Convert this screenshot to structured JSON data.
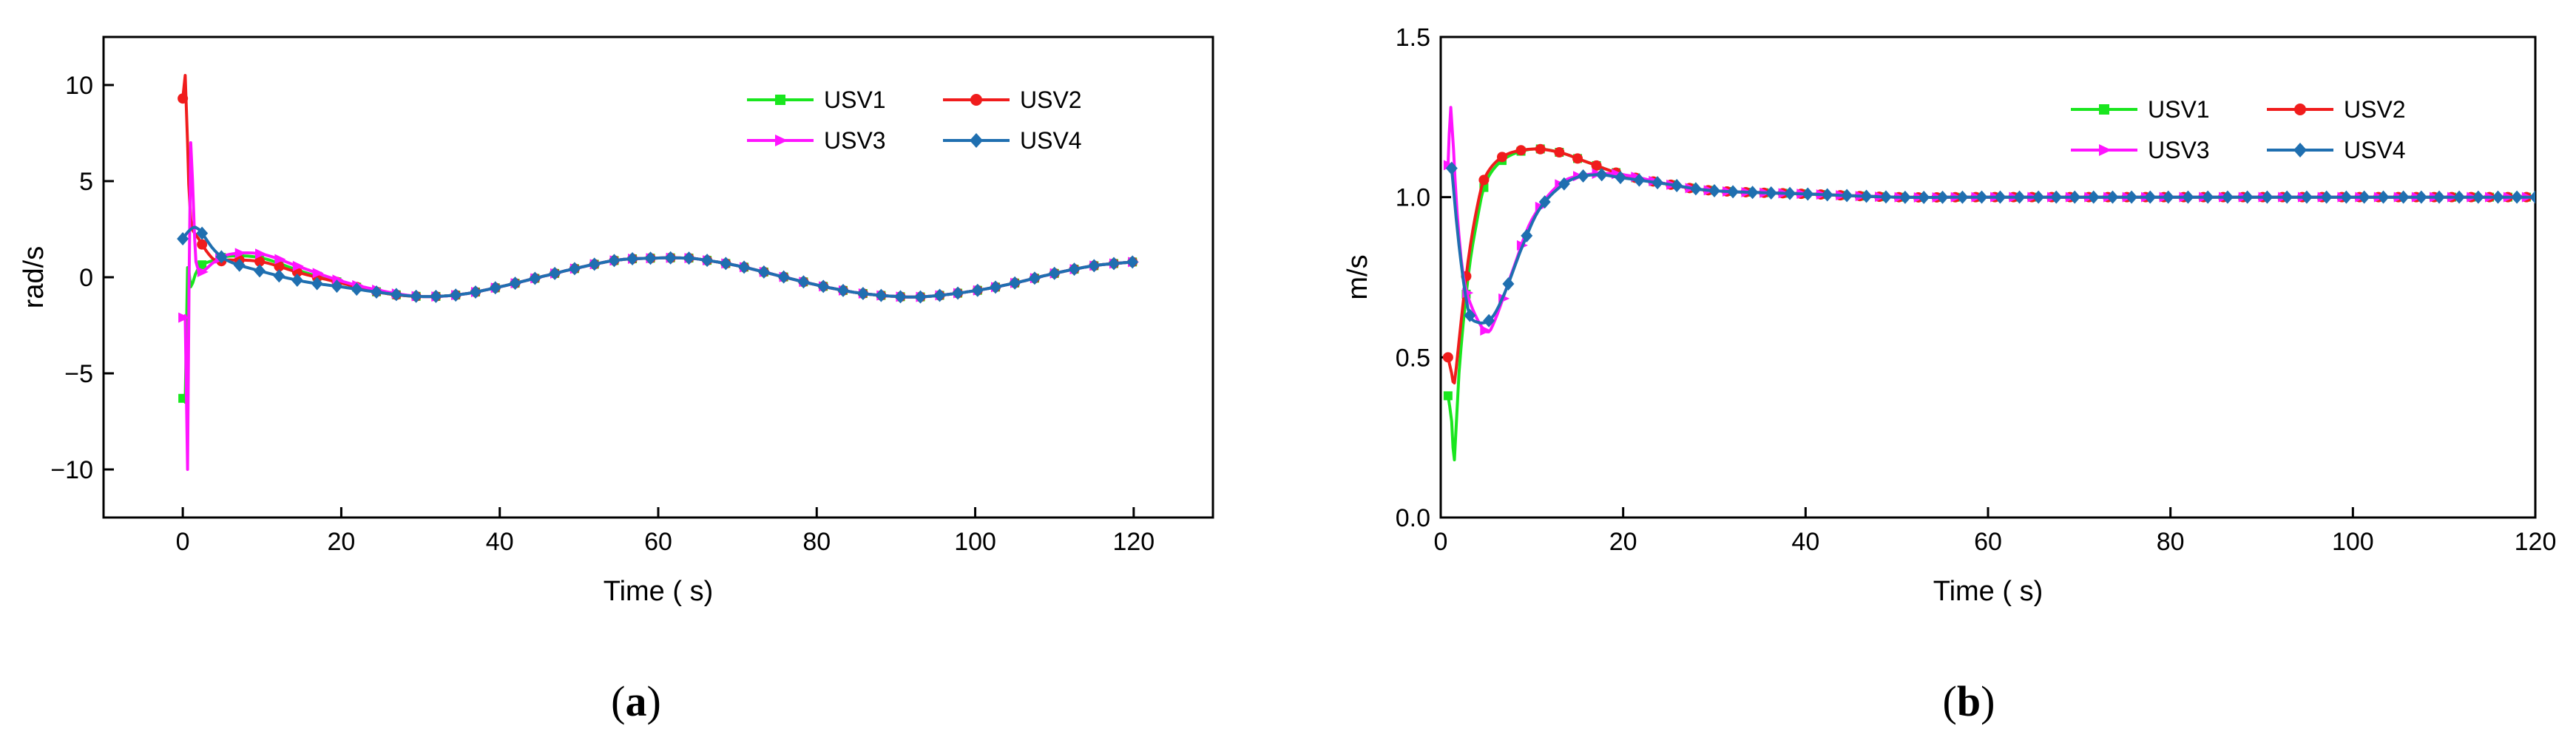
{
  "figure": {
    "captions": [
      {
        "open": "(",
        "letter": "a",
        "close": ")"
      },
      {
        "open": "(",
        "letter": "b",
        "close": ")"
      }
    ]
  },
  "chart_data": [
    {
      "type": "line",
      "panel": "a",
      "xlabel": "Time ( s)",
      "ylabel": "rad/s",
      "xlim": [
        -10,
        130
      ],
      "ylim": [
        -12.5,
        12.5
      ],
      "xticks": [
        0,
        20,
        40,
        60,
        80,
        100,
        120
      ],
      "xtick_labels": [
        "0",
        "20",
        "40",
        "60",
        "80",
        "100",
        "120"
      ],
      "yticks": [
        -10,
        -5,
        0,
        5,
        10
      ],
      "ytick_labels": [
        "−10",
        "−5",
        "0",
        "5",
        "10"
      ],
      "legend_position": "top-right",
      "series": [
        {
          "name": "USV1",
          "color": "#19e61e",
          "marker": "square",
          "x": [
            0,
            0.3,
            0.6,
            1,
            2,
            4,
            6,
            10,
            15,
            20,
            25,
            30,
            35,
            40,
            45,
            50,
            55,
            60,
            63,
            65,
            70,
            75,
            80,
            85,
            90,
            94,
            100,
            105,
            110,
            115,
            120
          ],
          "y": [
            -6.3,
            -6.5,
            0.5,
            -0.5,
            0.5,
            0.9,
            1.1,
            1.0,
            0.3,
            -0.3,
            -0.8,
            -1.0,
            -0.9,
            -0.5,
            0.0,
            0.5,
            0.9,
            1.0,
            1.0,
            0.95,
            0.6,
            0.1,
            -0.4,
            -0.8,
            -1.0,
            -1.0,
            -0.7,
            -0.3,
            0.2,
            0.6,
            0.8
          ]
        },
        {
          "name": "USV2",
          "color": "#f01c1c",
          "marker": "circle",
          "x": [
            0,
            0.3,
            0.6,
            1,
            2,
            4,
            6,
            10,
            15,
            20,
            25,
            30,
            35,
            40,
            45,
            50,
            55,
            60,
            63,
            65,
            70,
            75,
            80,
            85,
            90,
            94,
            100,
            105,
            110,
            115,
            120
          ],
          "y": [
            9.3,
            10.5,
            7.0,
            3.0,
            2.0,
            0.9,
            0.9,
            0.8,
            0.2,
            -0.3,
            -0.8,
            -1.0,
            -0.9,
            -0.5,
            0.0,
            0.5,
            0.9,
            1.0,
            1.0,
            0.95,
            0.6,
            0.1,
            -0.4,
            -0.8,
            -1.0,
            -1.0,
            -0.7,
            -0.3,
            0.2,
            0.6,
            0.8
          ]
        },
        {
          "name": "USV3",
          "color": "#ff14ff",
          "marker": "triangle-right",
          "x": [
            0,
            0.3,
            0.6,
            0.8,
            1.0,
            1.5,
            2,
            4,
            6,
            10,
            15,
            20,
            25,
            30,
            35,
            40,
            45,
            50,
            55,
            60,
            63,
            65,
            70,
            75,
            80,
            85,
            90,
            94,
            100,
            105,
            110,
            115,
            120
          ],
          "y": [
            -2.1,
            -2.0,
            -10.0,
            0.0,
            7.0,
            2.0,
            0.3,
            0.8,
            1.2,
            1.2,
            0.5,
            -0.2,
            -0.7,
            -1.0,
            -0.9,
            -0.5,
            0.0,
            0.5,
            0.9,
            1.0,
            1.0,
            0.95,
            0.6,
            0.1,
            -0.4,
            -0.8,
            -1.0,
            -1.0,
            -0.7,
            -0.3,
            0.2,
            0.6,
            0.8
          ]
        },
        {
          "name": "USV4",
          "color": "#1f6fb0",
          "marker": "diamond",
          "x": [
            0,
            1,
            2,
            4,
            6,
            10,
            15,
            20,
            25,
            30,
            35,
            40,
            45,
            50,
            55,
            60,
            63,
            65,
            70,
            75,
            80,
            85,
            90,
            94,
            100,
            105,
            110,
            115,
            120
          ],
          "y": [
            2.0,
            2.5,
            2.5,
            1.4,
            0.8,
            0.3,
            -0.2,
            -0.5,
            -0.8,
            -1.0,
            -0.9,
            -0.5,
            0.0,
            0.5,
            0.9,
            1.0,
            1.0,
            0.95,
            0.6,
            0.1,
            -0.4,
            -0.8,
            -1.0,
            -1.0,
            -0.7,
            -0.3,
            0.2,
            0.6,
            0.8
          ]
        }
      ]
    },
    {
      "type": "line",
      "panel": "b",
      "xlabel": "Time ( s)",
      "ylabel": "m/s",
      "xlim": [
        0,
        120
      ],
      "ylim": [
        0.0,
        1.5
      ],
      "xticks": [
        0,
        20,
        40,
        60,
        80,
        100,
        120
      ],
      "xtick_labels": [
        "0",
        "20",
        "40",
        "60",
        "80",
        "100",
        "120"
      ],
      "yticks": [
        0.0,
        0.5,
        1.0,
        1.5
      ],
      "ytick_labels": [
        "0.0",
        "0.5",
        "1.0",
        "1.5"
      ],
      "legend_position": "top-right",
      "series": [
        {
          "name": "USV1",
          "color": "#19e61e",
          "marker": "square",
          "x": [
            0.8,
            1.2,
            1.5,
            2,
            3,
            4,
            5,
            7,
            10,
            13,
            16,
            20,
            25,
            30,
            40,
            50,
            60,
            80,
            100,
            120
          ],
          "y": [
            0.38,
            0.3,
            0.18,
            0.45,
            0.75,
            0.93,
            1.05,
            1.12,
            1.15,
            1.14,
            1.11,
            1.07,
            1.04,
            1.02,
            1.01,
            1.0,
            1.0,
            1.0,
            1.0,
            1.0
          ]
        },
        {
          "name": "USV2",
          "color": "#f01c1c",
          "marker": "circle",
          "x": [
            0.8,
            1.2,
            1.5,
            2,
            3,
            4,
            5,
            7,
            10,
            13,
            16,
            20,
            25,
            30,
            40,
            50,
            60,
            80,
            100,
            120
          ],
          "y": [
            0.5,
            0.45,
            0.42,
            0.55,
            0.8,
            0.97,
            1.07,
            1.13,
            1.15,
            1.14,
            1.11,
            1.07,
            1.04,
            1.02,
            1.01,
            1.0,
            1.0,
            1.0,
            1.0,
            1.0
          ]
        },
        {
          "name": "USV3",
          "color": "#ff14ff",
          "marker": "triangle-right",
          "x": [
            0.8,
            1.1,
            1.4,
            1.8,
            2.5,
            3.5,
            5,
            6,
            8,
            10,
            13,
            16,
            20,
            25,
            30,
            40,
            50,
            60,
            80,
            100,
            120
          ],
          "y": [
            1.1,
            1.28,
            1.15,
            0.95,
            0.75,
            0.65,
            0.58,
            0.62,
            0.78,
            0.93,
            1.04,
            1.07,
            1.07,
            1.04,
            1.02,
            1.01,
            1.0,
            1.0,
            1.0,
            1.0,
            1.0
          ]
        },
        {
          "name": "USV4",
          "color": "#1f6fb0",
          "marker": "diamond",
          "x": [
            1.2,
            2,
            3,
            4,
            5.5,
            7,
            9,
            11,
            14,
            17,
            20,
            25,
            30,
            40,
            50,
            60,
            80,
            100,
            120
          ],
          "y": [
            1.09,
            0.85,
            0.65,
            0.61,
            0.62,
            0.7,
            0.85,
            0.97,
            1.05,
            1.07,
            1.06,
            1.04,
            1.02,
            1.01,
            1.0,
            1.0,
            1.0,
            1.0,
            1.0
          ]
        }
      ]
    }
  ]
}
